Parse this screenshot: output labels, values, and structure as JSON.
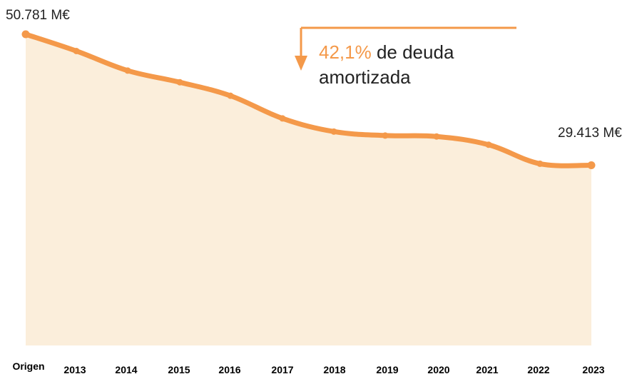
{
  "chart_data": {
    "type": "area",
    "categories": [
      "Origen",
      "2013",
      "2014",
      "2015",
      "2016",
      "2017",
      "2018",
      "2019",
      "2020",
      "2021",
      "2022",
      "2023"
    ],
    "values": [
      50781,
      48050,
      44850,
      42950,
      40750,
      37050,
      34900,
      34250,
      34100,
      32750,
      29650,
      29413
    ],
    "ylim": [
      0,
      50781
    ],
    "grid": false,
    "start_label": "50.781 M€",
    "end_label": "29.413 M€",
    "annotation": {
      "highlight": "42,1%",
      "line1_rest": " de deuda",
      "line2": "amortizada"
    },
    "colors": {
      "line": "#F4994A",
      "fill": "#FBEEDB",
      "text": "#222222"
    }
  }
}
